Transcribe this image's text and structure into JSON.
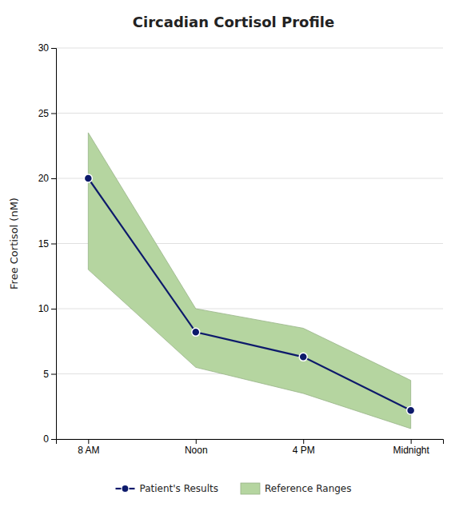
{
  "chart_data": {
    "type": "line",
    "title": "Circadian Cortisol Profile",
    "categories": [
      "8 AM",
      "Noon",
      "4 PM",
      "Midnight"
    ],
    "ylabel": "Free Cortisol (nM)",
    "ylim": [
      0,
      30
    ],
    "yticks": [
      0,
      5,
      10,
      15,
      20,
      25,
      30
    ],
    "grid": true,
    "legend": "bottom",
    "series": [
      {
        "name": "Patient's Results",
        "type": "line",
        "color": "#0d1a6b",
        "marker": "circle",
        "line_style": "solid",
        "values": [
          20.0,
          8.2,
          6.3,
          2.2
        ]
      },
      {
        "name": "Reference Ranges",
        "type": "band",
        "color": "#b5d5a0",
        "lower": [
          13.0,
          5.5,
          3.5,
          0.8
        ],
        "upper": [
          23.5,
          10.0,
          8.5,
          4.5
        ]
      }
    ]
  }
}
